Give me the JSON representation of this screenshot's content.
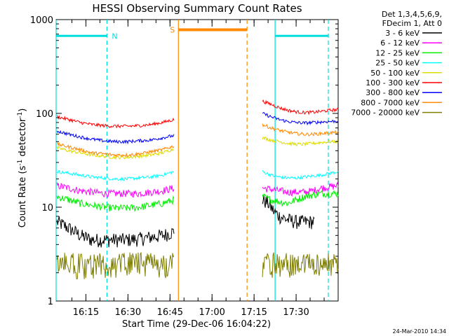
{
  "chart_data": {
    "type": "line",
    "title": "HESSI Observing Summary Count Rates",
    "xlabel": "Start Time (29-Dec-06 16:04:22)",
    "ylabel_main": "Count Rate (s",
    "ylabel_sup1": "-1",
    "ylabel_mid": " detector",
    "ylabel_sup2": "-1",
    "ylabel_end": ")",
    "footer_date": "24-Mar-2010 14:34",
    "legend_header": [
      "Det 1,3,4,5,6,9,",
      "FDecim 1, Att 0"
    ],
    "x_start_min": 964.37,
    "x_range_min": [
      964.37,
      1065
    ],
    "y_scale": "log",
    "y_range": [
      1,
      1000
    ],
    "x_ticks": [
      {
        "t": 975,
        "label": "16:15"
      },
      {
        "t": 990,
        "label": "16:30"
      },
      {
        "t": 1005,
        "label": "16:45"
      },
      {
        "t": 1020,
        "label": "17:00"
      },
      {
        "t": 1035,
        "label": "17:15"
      },
      {
        "t": 1050,
        "label": "17:30"
      }
    ],
    "y_ticks": [
      {
        "v": 1,
        "label": "1"
      },
      {
        "v": 10,
        "label": "10"
      },
      {
        "v": 100,
        "label": "100"
      },
      {
        "v": 1000,
        "label": "1000"
      }
    ],
    "gap": [
      1006.5,
      1038
    ],
    "series": [
      {
        "name": "3 - 6 keV",
        "color": "#000000",
        "seg1": [
          7,
          6,
          5,
          4.5,
          4.5,
          4.5,
          4.5,
          4.6,
          4.8,
          5,
          5.5
        ],
        "seg2": [
          12,
          11,
          9,
          8,
          7.5,
          7.2,
          7,
          7,
          7,
          7
        ],
        "seg2_end": 1056.5
      },
      {
        "name": "6 - 12 keV",
        "color": "#ff00ff",
        "seg1": [
          17,
          16,
          15,
          14.5,
          14,
          14,
          14,
          14,
          14.5,
          15,
          16
        ],
        "seg2": [
          16,
          15.5,
          15,
          14.5,
          14.5,
          14.5,
          15,
          16,
          16.5,
          17
        ],
        "seg2_end": 1065
      },
      {
        "name": "12 - 25 keV",
        "color": "#00ee00",
        "seg1": [
          13,
          12,
          11,
          10.5,
          10,
          9.8,
          9.8,
          10,
          10.5,
          11,
          12
        ],
        "seg2": [
          13,
          12,
          11.5,
          11,
          12,
          13,
          13.5,
          14,
          14,
          14
        ],
        "seg2_end": 1065
      },
      {
        "name": "25 - 50 keV",
        "color": "#00ffff",
        "seg1": [
          24,
          23,
          22,
          21,
          20.5,
          20,
          20,
          20.5,
          21,
          22,
          24
        ],
        "seg2": [
          24,
          22,
          21,
          20.5,
          20.5,
          21,
          21.5,
          22,
          23,
          24
        ],
        "seg2_end": 1065
      },
      {
        "name": "50 - 100 keV",
        "color": "#dddd00",
        "seg1": [
          43,
          40,
          38,
          36,
          35,
          34,
          34,
          35,
          36,
          38,
          42
        ],
        "seg2": [
          55,
          52,
          50,
          48,
          47,
          47,
          48,
          49,
          50,
          50
        ],
        "seg2_end": 1065
      },
      {
        "name": "100 - 300 keV",
        "color": "#ff0000",
        "seg1": [
          92,
          86,
          80,
          76,
          74,
          73,
          73,
          74,
          76,
          80,
          86
        ],
        "seg2": [
          135,
          125,
          115,
          108,
          104,
          102,
          103,
          105,
          108,
          110
        ],
        "seg2_end": 1065
      },
      {
        "name": "300 - 800 keV",
        "color": "#0000ff",
        "seg1": [
          65,
          60,
          56,
          53,
          51,
          50,
          50,
          51,
          52,
          55,
          58
        ],
        "seg2": [
          100,
          92,
          86,
          82,
          80,
          79,
          80,
          81,
          82,
          83
        ],
        "seg2_end": 1065
      },
      {
        "name": "800 - 7000 keV",
        "color": "#ff8800",
        "seg1": [
          47,
          44,
          41,
          38,
          37,
          36,
          36,
          37,
          39,
          41,
          45
        ],
        "seg2": [
          76,
          70,
          66,
          63,
          61,
          60,
          60,
          61,
          62,
          63
        ],
        "seg2_end": 1065
      },
      {
        "name": "7000 - 20000 keV",
        "color": "#808000",
        "seg1": [
          2.5,
          2.5,
          2.5,
          2.3,
          2.3,
          2.3,
          2.3,
          2.5,
          2.5,
          2.5,
          2.5
        ],
        "seg2": [
          2.6,
          2.5,
          2.5,
          2.5,
          2.5,
          2.5,
          2.5,
          2.6,
          2.8,
          3
        ],
        "seg2_end": 1065
      }
    ],
    "annotations": {
      "night": {
        "label": "N",
        "color": "#00dddd",
        "solid": [
          964.37,
          1042.5
        ],
        "dashed": [
          982.5,
          1061.5
        ],
        "bars": [
          [
            964.37,
            982.5
          ],
          [
            1042.5,
            1061.5
          ]
        ],
        "bar_value": 670
      },
      "saa": {
        "label": "S",
        "color": "#ff8800",
        "solid": 1008,
        "dashed": 1032.5,
        "bar": [
          1008,
          1032.5
        ],
        "bar_value": 780
      }
    }
  }
}
